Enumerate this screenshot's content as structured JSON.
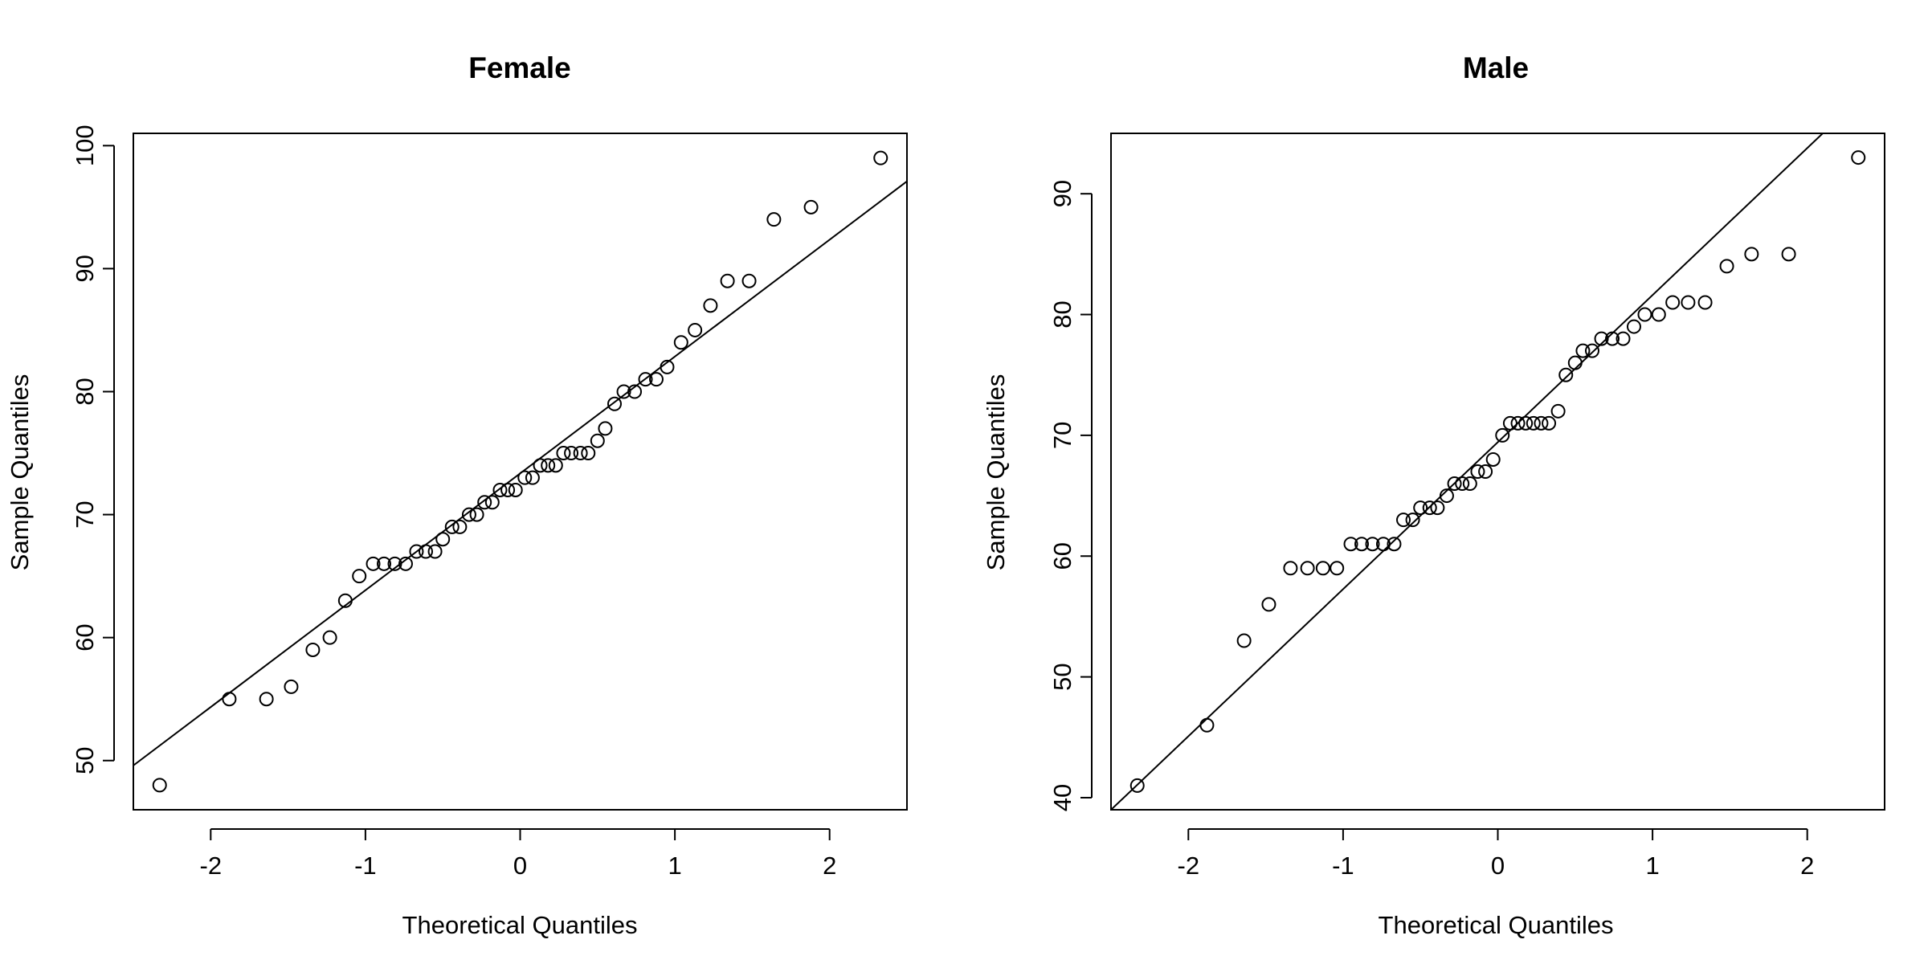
{
  "chart_data": [
    {
      "type": "scatter",
      "title": "Female",
      "xlabel": "Theoretical Quantiles",
      "ylabel": "Sample Quantiles",
      "xlim": [
        -2.5,
        2.5
      ],
      "ylim": [
        46,
        101
      ],
      "x_ticks": [
        -2,
        -1,
        0,
        1,
        2
      ],
      "x_tick_labels": [
        "-2",
        "-1",
        "0",
        "1",
        "2"
      ],
      "y_ticks": [
        50,
        60,
        70,
        80,
        90,
        100
      ],
      "y_tick_labels": [
        "50",
        "60",
        "70",
        "80",
        "90",
        "100"
      ],
      "grid": false,
      "reference_line": {
        "x": [
          -2.5,
          2.5
        ],
        "y": [
          49.6,
          97.1
        ]
      },
      "points": [
        {
          "x": -2.33,
          "y": 48
        },
        {
          "x": -1.88,
          "y": 55
        },
        {
          "x": -1.64,
          "y": 55
        },
        {
          "x": -1.48,
          "y": 56
        },
        {
          "x": -1.34,
          "y": 59
        },
        {
          "x": -1.23,
          "y": 60
        },
        {
          "x": -1.13,
          "y": 63
        },
        {
          "x": -1.04,
          "y": 65
        },
        {
          "x": -0.95,
          "y": 66
        },
        {
          "x": -0.88,
          "y": 66
        },
        {
          "x": -0.81,
          "y": 66
        },
        {
          "x": -0.74,
          "y": 66
        },
        {
          "x": -0.67,
          "y": 67
        },
        {
          "x": -0.61,
          "y": 67
        },
        {
          "x": -0.55,
          "y": 67
        },
        {
          "x": -0.5,
          "y": 68
        },
        {
          "x": -0.44,
          "y": 69
        },
        {
          "x": -0.39,
          "y": 69
        },
        {
          "x": -0.33,
          "y": 70
        },
        {
          "x": -0.28,
          "y": 70
        },
        {
          "x": -0.23,
          "y": 71
        },
        {
          "x": -0.18,
          "y": 71
        },
        {
          "x": -0.13,
          "y": 72
        },
        {
          "x": -0.08,
          "y": 72
        },
        {
          "x": -0.03,
          "y": 72
        },
        {
          "x": 0.03,
          "y": 73
        },
        {
          "x": 0.08,
          "y": 73
        },
        {
          "x": 0.13,
          "y": 74
        },
        {
          "x": 0.18,
          "y": 74
        },
        {
          "x": 0.23,
          "y": 74
        },
        {
          "x": 0.28,
          "y": 75
        },
        {
          "x": 0.33,
          "y": 75
        },
        {
          "x": 0.39,
          "y": 75
        },
        {
          "x": 0.44,
          "y": 75
        },
        {
          "x": 0.5,
          "y": 76
        },
        {
          "x": 0.55,
          "y": 77
        },
        {
          "x": 0.61,
          "y": 79
        },
        {
          "x": 0.67,
          "y": 80
        },
        {
          "x": 0.74,
          "y": 80
        },
        {
          "x": 0.81,
          "y": 81
        },
        {
          "x": 0.88,
          "y": 81
        },
        {
          "x": 0.95,
          "y": 82
        },
        {
          "x": 1.04,
          "y": 84
        },
        {
          "x": 1.13,
          "y": 85
        },
        {
          "x": 1.23,
          "y": 87
        },
        {
          "x": 1.34,
          "y": 89
        },
        {
          "x": 1.48,
          "y": 89
        },
        {
          "x": 1.64,
          "y": 94
        },
        {
          "x": 1.88,
          "y": 95
        },
        {
          "x": 2.33,
          "y": 99
        }
      ]
    },
    {
      "type": "scatter",
      "title": "Male",
      "xlabel": "Theoretical Quantiles",
      "ylabel": "Sample Quantiles",
      "xlim": [
        -2.5,
        2.5
      ],
      "ylim": [
        39,
        95
      ],
      "x_ticks": [
        -2,
        -1,
        0,
        1,
        2
      ],
      "x_tick_labels": [
        "-2",
        "-1",
        "0",
        "1",
        "2"
      ],
      "y_ticks": [
        40,
        50,
        60,
        70,
        80,
        90
      ],
      "y_tick_labels": [
        "40",
        "50",
        "60",
        "70",
        "80",
        "90"
      ],
      "grid": false,
      "reference_line": {
        "x": [
          -2.5,
          2.1
        ],
        "y": [
          39,
          95
        ]
      },
      "points": [
        {
          "x": -2.33,
          "y": 41
        },
        {
          "x": -1.88,
          "y": 46
        },
        {
          "x": -1.64,
          "y": 53
        },
        {
          "x": -1.48,
          "y": 56
        },
        {
          "x": -1.34,
          "y": 59
        },
        {
          "x": -1.23,
          "y": 59
        },
        {
          "x": -1.13,
          "y": 59
        },
        {
          "x": -1.04,
          "y": 59
        },
        {
          "x": -0.95,
          "y": 61
        },
        {
          "x": -0.88,
          "y": 61
        },
        {
          "x": -0.81,
          "y": 61
        },
        {
          "x": -0.74,
          "y": 61
        },
        {
          "x": -0.67,
          "y": 61
        },
        {
          "x": -0.61,
          "y": 63
        },
        {
          "x": -0.55,
          "y": 63
        },
        {
          "x": -0.5,
          "y": 64
        },
        {
          "x": -0.44,
          "y": 64
        },
        {
          "x": -0.39,
          "y": 64
        },
        {
          "x": -0.33,
          "y": 65
        },
        {
          "x": -0.28,
          "y": 66
        },
        {
          "x": -0.23,
          "y": 66
        },
        {
          "x": -0.18,
          "y": 66
        },
        {
          "x": -0.13,
          "y": 67
        },
        {
          "x": -0.08,
          "y": 67
        },
        {
          "x": -0.03,
          "y": 68
        },
        {
          "x": 0.03,
          "y": 70
        },
        {
          "x": 0.08,
          "y": 71
        },
        {
          "x": 0.13,
          "y": 71
        },
        {
          "x": 0.18,
          "y": 71
        },
        {
          "x": 0.23,
          "y": 71
        },
        {
          "x": 0.28,
          "y": 71
        },
        {
          "x": 0.33,
          "y": 71
        },
        {
          "x": 0.39,
          "y": 72
        },
        {
          "x": 0.44,
          "y": 75
        },
        {
          "x": 0.5,
          "y": 76
        },
        {
          "x": 0.55,
          "y": 77
        },
        {
          "x": 0.61,
          "y": 77
        },
        {
          "x": 0.67,
          "y": 78
        },
        {
          "x": 0.74,
          "y": 78
        },
        {
          "x": 0.81,
          "y": 78
        },
        {
          "x": 0.88,
          "y": 79
        },
        {
          "x": 0.95,
          "y": 80
        },
        {
          "x": 1.04,
          "y": 80
        },
        {
          "x": 1.13,
          "y": 81
        },
        {
          "x": 1.23,
          "y": 81
        },
        {
          "x": 1.34,
          "y": 81
        },
        {
          "x": 1.48,
          "y": 84
        },
        {
          "x": 1.64,
          "y": 85
        },
        {
          "x": 1.88,
          "y": 85
        },
        {
          "x": 2.33,
          "y": 93
        }
      ]
    }
  ]
}
